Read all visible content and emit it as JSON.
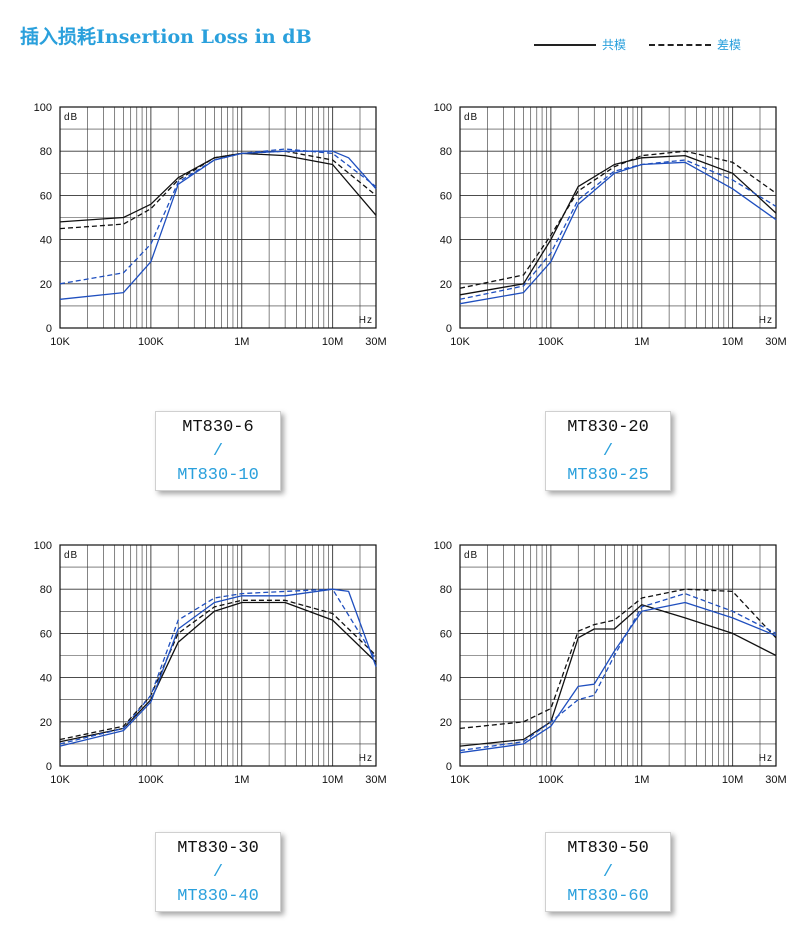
{
  "header": {
    "title": "插入损耗Insertion Loss in dB",
    "legend_solid": "共模",
    "legend_dashed": "差模"
  },
  "colors": {
    "black_series": "#111111",
    "blue_series": "#1f4fbf",
    "accent": "#2aa0dc"
  },
  "charts": [
    {
      "model_primary": "MT830-6",
      "separator": "/",
      "model_secondary": "MT830-10",
      "chart_data": {
        "type": "line",
        "xscale": "log",
        "xlim": [
          10000,
          30000000
        ],
        "ylim": [
          0,
          100
        ],
        "y_ticks": [
          "0",
          "20",
          "40",
          "60",
          "80",
          "100"
        ],
        "x_ticks": [
          "10K",
          "100K",
          "1M",
          "10M",
          "30M"
        ],
        "unit_y": "dB",
        "unit_x": "Hz",
        "grid": true,
        "series": [
          {
            "color": "black",
            "style": "solid",
            "x": [
              10000,
              50000,
              100000,
              200000,
              500000,
              1000000,
              3000000,
              10000000,
              30000000
            ],
            "y": [
              48,
              50,
              56,
              68,
              77,
              79,
              78,
              74,
              51
            ]
          },
          {
            "color": "black",
            "style": "dashed",
            "x": [
              10000,
              50000,
              100000,
              200000,
              500000,
              1000000,
              3000000,
              10000000,
              30000000
            ],
            "y": [
              45,
              47,
              54,
              67,
              77,
              79,
              80,
              76,
              60
            ]
          },
          {
            "color": "blue",
            "style": "solid",
            "x": [
              10000,
              50000,
              100000,
              200000,
              500000,
              1000000,
              3000000,
              10000000,
              15000000,
              30000000
            ],
            "y": [
              13,
              16,
              30,
              65,
              76,
              79,
              80,
              80,
              77,
              63
            ]
          },
          {
            "color": "blue",
            "style": "dashed",
            "x": [
              10000,
              50000,
              100000,
              200000,
              500000,
              1000000,
              3000000,
              10000000,
              30000000
            ],
            "y": [
              20,
              25,
              38,
              66,
              76,
              79,
              81,
              79,
              64
            ]
          }
        ]
      }
    },
    {
      "model_primary": "MT830-20",
      "separator": "/",
      "model_secondary": "MT830-25",
      "chart_data": {
        "type": "line",
        "xscale": "log",
        "xlim": [
          10000,
          30000000
        ],
        "ylim": [
          0,
          100
        ],
        "y_ticks": [
          "0",
          "20",
          "40",
          "60",
          "80",
          "100"
        ],
        "x_ticks": [
          "10K",
          "100K",
          "1M",
          "10M",
          "30M"
        ],
        "unit_y": "dB",
        "unit_x": "Hz",
        "grid": true,
        "series": [
          {
            "color": "black",
            "style": "solid",
            "x": [
              10000,
              50000,
              100000,
              200000,
              500000,
              1000000,
              3000000,
              10000000,
              30000000
            ],
            "y": [
              15,
              20,
              40,
              64,
              74,
              77,
              78,
              70,
              52
            ]
          },
          {
            "color": "black",
            "style": "dashed",
            "x": [
              10000,
              50000,
              100000,
              200000,
              500000,
              1000000,
              3000000,
              10000000,
              30000000
            ],
            "y": [
              18,
              24,
              42,
              62,
              73,
              78,
              80,
              75,
              61
            ]
          },
          {
            "color": "blue",
            "style": "solid",
            "x": [
              10000,
              50000,
              100000,
              200000,
              500000,
              1000000,
              3000000,
              10000000,
              30000000
            ],
            "y": [
              11,
              16,
              30,
              56,
              70,
              74,
              75,
              63,
              49
            ]
          },
          {
            "color": "blue",
            "style": "dashed",
            "x": [
              10000,
              50000,
              100000,
              200000,
              500000,
              1000000,
              3000000,
              10000000,
              30000000
            ],
            "y": [
              13,
              19,
              34,
              58,
              71,
              74,
              76,
              67,
              55
            ]
          }
        ]
      }
    },
    {
      "model_primary": "MT830-30",
      "separator": "/",
      "model_secondary": "MT830-40",
      "chart_data": {
        "type": "line",
        "xscale": "log",
        "xlim": [
          10000,
          30000000
        ],
        "ylim": [
          0,
          100
        ],
        "y_ticks": [
          "0",
          "20",
          "40",
          "60",
          "80",
          "100"
        ],
        "x_ticks": [
          "10K",
          "100K",
          "1M",
          "10M",
          "30M"
        ],
        "unit_y": "dB",
        "unit_x": "Hz",
        "grid": true,
        "series": [
          {
            "color": "black",
            "style": "solid",
            "x": [
              10000,
              50000,
              100000,
              200000,
              500000,
              1000000,
              3000000,
              10000000,
              30000000
            ],
            "y": [
              11,
              17,
              30,
              56,
              70,
              74,
              74,
              66,
              47
            ]
          },
          {
            "color": "black",
            "style": "dashed",
            "x": [
              10000,
              50000,
              100000,
              200000,
              500000,
              1000000,
              3000000,
              10000000,
              30000000
            ],
            "y": [
              12,
              18,
              32,
              60,
              72,
              75,
              75,
              69,
              50
            ]
          },
          {
            "color": "blue",
            "style": "solid",
            "x": [
              10000,
              50000,
              100000,
              200000,
              500000,
              1000000,
              3000000,
              10000000,
              15000000,
              30000000
            ],
            "y": [
              9,
              16,
              29,
              62,
              74,
              77,
              77,
              80,
              79,
              45
            ]
          },
          {
            "color": "blue",
            "style": "dashed",
            "x": [
              10000,
              50000,
              100000,
              200000,
              500000,
              1000000,
              3000000,
              10000000,
              30000000
            ],
            "y": [
              10,
              17,
              32,
              66,
              76,
              78,
              79,
              80,
              48
            ]
          }
        ]
      }
    },
    {
      "model_primary": "MT830-50",
      "separator": "/",
      "model_secondary": "MT830-60",
      "chart_data": {
        "type": "line",
        "xscale": "log",
        "xlim": [
          10000,
          30000000
        ],
        "ylim": [
          0,
          100
        ],
        "y_ticks": [
          "0",
          "20",
          "40",
          "60",
          "80",
          "100"
        ],
        "x_ticks": [
          "10K",
          "100K",
          "1M",
          "10M",
          "30M"
        ],
        "unit_y": "dB",
        "unit_x": "Hz",
        "grid": true,
        "series": [
          {
            "color": "black",
            "style": "solid",
            "x": [
              10000,
              50000,
              100000,
              200000,
              300000,
              500000,
              1000000,
              3000000,
              10000000,
              30000000
            ],
            "y": [
              9,
              12,
              20,
              58,
              62,
              62,
              73,
              67,
              60,
              50
            ]
          },
          {
            "color": "black",
            "style": "dashed",
            "x": [
              10000,
              50000,
              100000,
              200000,
              300000,
              500000,
              1000000,
              3000000,
              10000000,
              30000000
            ],
            "y": [
              17,
              20,
              26,
              61,
              64,
              66,
              76,
              80,
              79,
              58
            ]
          },
          {
            "color": "blue",
            "style": "solid",
            "x": [
              10000,
              50000,
              100000,
              200000,
              300000,
              500000,
              1000000,
              3000000,
              10000000,
              30000000
            ],
            "y": [
              6,
              10,
              18,
              36,
              37,
              52,
              70,
              74,
              67,
              59
            ]
          },
          {
            "color": "blue",
            "style": "dashed",
            "x": [
              10000,
              50000,
              100000,
              200000,
              300000,
              500000,
              1000000,
              3000000,
              10000000,
              30000000
            ],
            "y": [
              7,
              11,
              20,
              30,
              32,
              50,
              72,
              78,
              70,
              60
            ]
          }
        ]
      }
    }
  ]
}
